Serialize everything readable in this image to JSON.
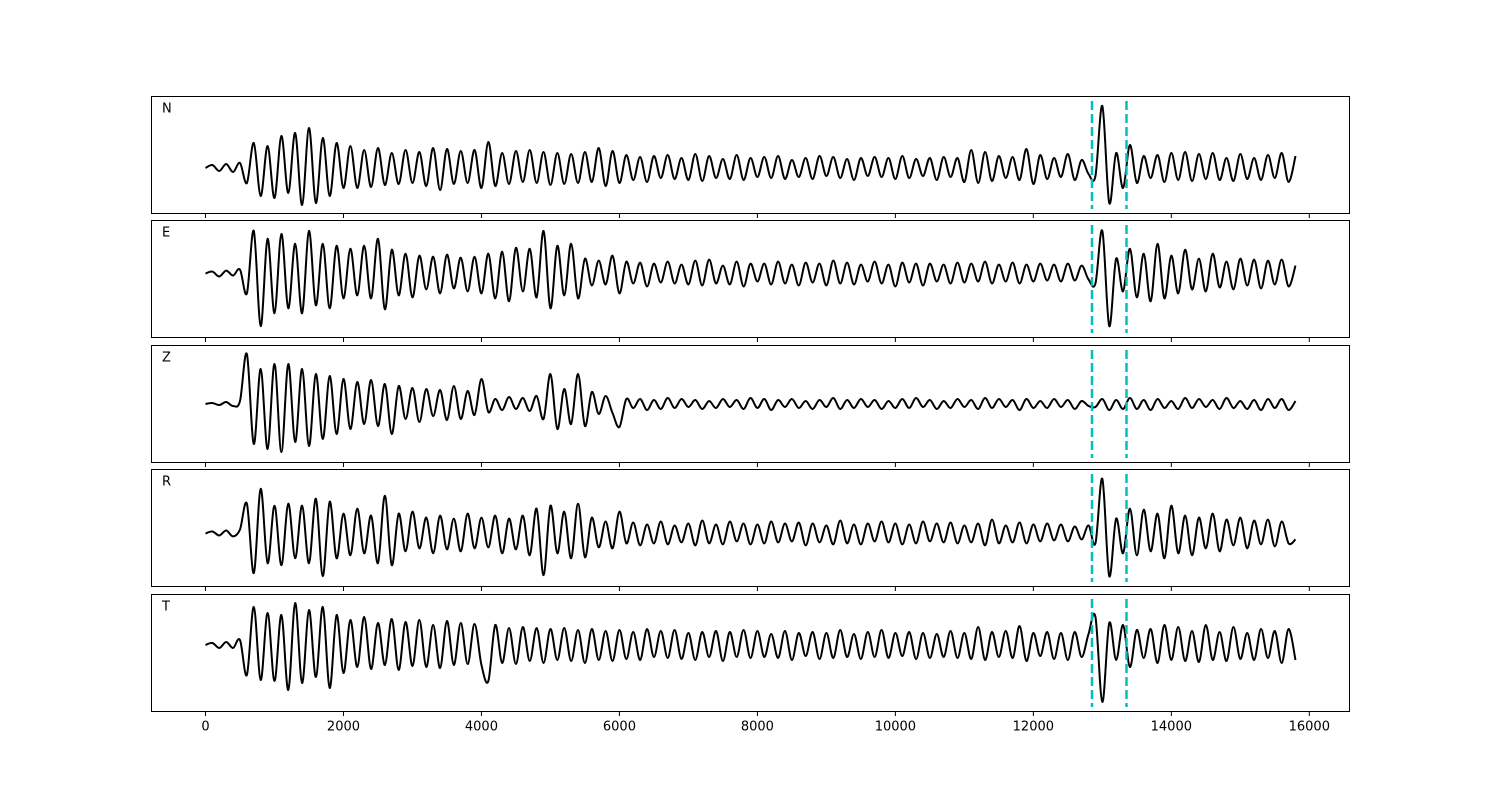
{
  "chart_data": {
    "type": "line",
    "x": [
      0,
      100,
      200,
      300,
      400,
      500,
      600,
      700,
      800,
      900,
      1000,
      1100,
      1200,
      1300,
      1400,
      1500,
      1600,
      1700,
      1800,
      1900,
      2000,
      2100,
      2200,
      2300,
      2400,
      2500,
      2600,
      2700,
      2800,
      2900,
      3000,
      3100,
      3200,
      3300,
      3400,
      3500,
      3600,
      3700,
      3800,
      3900,
      4000,
      4100,
      4200,
      4300,
      4400,
      4500,
      4600,
      4700,
      4800,
      4900,
      5000,
      5100,
      5200,
      5300,
      5400,
      5500,
      5600,
      5700,
      5800,
      5900,
      6000,
      6100,
      6200,
      6300,
      6400,
      6500,
      6600,
      6700,
      6800,
      6900,
      7000,
      7100,
      7200,
      7300,
      7400,
      7500,
      7600,
      7700,
      7800,
      7900,
      8000,
      8100,
      8200,
      8300,
      8400,
      8500,
      8600,
      8700,
      8800,
      8900,
      9000,
      9100,
      9200,
      9300,
      9400,
      9500,
      9600,
      9700,
      9800,
      9900,
      10000,
      10100,
      10200,
      10300,
      10400,
      10500,
      10600,
      10700,
      10800,
      10900,
      11000,
      11100,
      11200,
      11300,
      11400,
      11500,
      11600,
      11700,
      11800,
      11900,
      12000,
      12100,
      12200,
      12300,
      12400,
      12500,
      12600,
      12700,
      12800,
      12900,
      13000,
      13100,
      13200,
      13300,
      13400,
      13500,
      13600,
      13700,
      13800,
      13900,
      14000,
      14100,
      14200,
      14300,
      14400,
      14500,
      14600,
      14700,
      14800,
      14900,
      15000,
      15100,
      15200,
      15300,
      15400,
      15500,
      15600,
      15700,
      15800
    ],
    "xlim": [
      -790,
      16590
    ],
    "xticks": [
      0,
      2000,
      4000,
      6000,
      8000,
      10000,
      12000,
      14000,
      16000
    ],
    "series": [
      {
        "name": "N",
        "color": "#000000",
        "ylim": [
          -4.6,
          7.2
        ],
        "values": [
          0,
          0.3,
          -0.3,
          0.4,
          -0.4,
          0.5,
          -1.5,
          2.5,
          -2.8,
          2.2,
          -3,
          3.2,
          -2.5,
          3.5,
          -3.7,
          4,
          -3.5,
          3,
          -2.8,
          2.5,
          -2,
          2.2,
          -2,
          1.8,
          -1.9,
          2,
          -1.7,
          1.5,
          -1.6,
          1.8,
          -1.5,
          1.6,
          -1.8,
          2,
          -2.2,
          1.9,
          -1.6,
          1.7,
          -1.5,
          1.8,
          -2,
          2.6,
          -1.8,
          1.5,
          -1.6,
          1.7,
          -1.4,
          1.8,
          -1.5,
          1.6,
          -1.7,
          1.5,
          -1.6,
          1.4,
          -1.5,
          1.6,
          -1.4,
          2,
          -1.8,
          1.7,
          -1.5,
          1.3,
          -1.2,
          1.1,
          -1.4,
          1.2,
          -1,
          1.3,
          -1.1,
          1,
          -1.2,
          1.4,
          -1.3,
          1.2,
          -1,
          0.9,
          -1.1,
          1.3,
          -1.2,
          1,
          -0.9,
          1.1,
          -1,
          1.2,
          -1.1,
          0.8,
          -0.9,
          1,
          -1.1,
          1.2,
          -0.8,
          1.1,
          -1,
          0.9,
          -1.2,
          1,
          -0.8,
          1.1,
          -0.9,
          1,
          -1.1,
          1.2,
          -1,
          0.9,
          -0.8,
          1,
          -1.2,
          1.1,
          -0.9,
          1,
          -1.4,
          1.8,
          -1.5,
          1.6,
          -1.3,
          1.2,
          -1,
          1.1,
          -1.2,
          1.9,
          -1.6,
          1.3,
          -1.1,
          1,
          -0.9,
          1.4,
          -1.2,
          0.8,
          -0.6,
          -0.8,
          6.2,
          -3.5,
          1.5,
          -2,
          2.3,
          -1.5,
          1.2,
          -1,
          1.3,
          -1.4,
          1.5,
          -1.2,
          1.6,
          -1.3,
          1.4,
          -1.1,
          1.5,
          -1.2,
          1,
          -1.3,
          1.4,
          -1.1,
          1,
          -1.2,
          1.3,
          -1,
          1.5,
          -1.4,
          1.2
        ]
      },
      {
        "name": "E",
        "color": "#000000",
        "ylim": [
          -6.5,
          5.4
        ],
        "values": [
          0,
          0.2,
          -0.3,
          0.3,
          -0.2,
          0.4,
          -2,
          4.3,
          -5.3,
          3.5,
          -4,
          4,
          -3.5,
          3,
          -4,
          4.3,
          -3.2,
          3,
          -3.5,
          2.8,
          -2.5,
          2.5,
          -2.2,
          2.8,
          -2.5,
          3.5,
          -3.6,
          2.4,
          -2.2,
          2,
          -2.4,
          1.8,
          -1.6,
          1.7,
          -2,
          1.9,
          -1.5,
          1.6,
          -1.8,
          1.7,
          -2,
          2,
          -2.5,
          2.2,
          -2.8,
          2.6,
          -1.8,
          2.5,
          -2.4,
          4.3,
          -3.5,
          2.8,
          -2.2,
          3,
          -2.5,
          1.5,
          -1.2,
          1.3,
          -1.1,
          1.8,
          -2,
          1.2,
          -1,
          1.1,
          -1.3,
          1,
          -0.9,
          1.2,
          -1,
          0.9,
          -1.1,
          1.3,
          -1.2,
          1.4,
          -1,
          0.8,
          -1.1,
          1.2,
          -1.3,
          1,
          -0.8,
          1,
          -1.1,
          1.2,
          -1,
          0.9,
          -1.2,
          1.1,
          -0.9,
          1,
          -1.2,
          1.3,
          -1,
          1.1,
          -1.1,
          0.9,
          -0.8,
          1.2,
          -1,
          0.9,
          -1.3,
          1.1,
          -0.9,
          1,
          -1.2,
          1,
          -0.8,
          0.9,
          -1,
          1.1,
          -0.9,
          1,
          -0.8,
          1.2,
          -1,
          0.9,
          -0.8,
          1.1,
          -1,
          0.9,
          -0.8,
          1,
          -0.7,
          0.9,
          -0.8,
          1,
          -0.7,
          0.8,
          -0.6,
          -1,
          4.3,
          -5.3,
          1.5,
          -1.8,
          2.5,
          -2.4,
          2,
          -2.8,
          3,
          -2.5,
          1.8,
          -2,
          2.4,
          -1.6,
          1.5,
          -1.8,
          2,
          -1.4,
          1.2,
          -1.6,
          1.5,
          -1.2,
          1.4,
          -1.5,
          1.3,
          -1.1,
          1.4,
          -1.3,
          0.8
        ]
      },
      {
        "name": "Z",
        "color": "#000000",
        "ylim": [
          -5.9,
          5.9
        ],
        "values": [
          0,
          0.1,
          -0.1,
          0.2,
          -0.2,
          0.3,
          5,
          -4,
          3.5,
          -4.5,
          4,
          -4.8,
          4,
          -3.8,
          3.5,
          -4.2,
          3,
          -3.5,
          2.8,
          -3,
          2.5,
          -2.5,
          2.2,
          -2,
          2.4,
          -2.2,
          2,
          -3,
          1.8,
          -1.5,
          1.6,
          -1.8,
          1.5,
          -1.2,
          1.4,
          -1.6,
          1.8,
          -1.5,
          1.3,
          -1.1,
          2.5,
          -0.8,
          0.5,
          -0.6,
          0.7,
          -0.5,
          0.6,
          -0.7,
          0.8,
          -1.5,
          3,
          -2.5,
          1.5,
          -2,
          3,
          -2.2,
          1.2,
          -1,
          0.8,
          -0.9,
          -2.3,
          0.5,
          -0.4,
          0.5,
          -0.6,
          0.4,
          -0.5,
          0.6,
          -0.4,
          0.5,
          -0.3,
          0.4,
          -0.5,
          0.3,
          -0.4,
          0.5,
          -0.3,
          0.4,
          -0.5,
          0.6,
          -0.4,
          0.5,
          -0.6,
          0.4,
          -0.3,
          0.5,
          -0.4,
          0.3,
          -0.5,
          0.4,
          -0.3,
          0.6,
          -0.5,
          0.4,
          -0.4,
          0.5,
          -0.3,
          0.4,
          -0.5,
          0.3,
          -0.4,
          0.5,
          -0.4,
          0.6,
          -0.3,
          0.4,
          -0.5,
          0.3,
          -0.4,
          0.5,
          -0.3,
          0.4,
          -0.5,
          0.6,
          -0.4,
          0.5,
          -0.3,
          0.4,
          -0.6,
          0.5,
          -0.4,
          0.3,
          -0.4,
          0.5,
          -0.3,
          0.4,
          -0.5,
          0.3,
          -0.2,
          -0.3,
          0.5,
          -0.6,
          0.4,
          -0.5,
          0.6,
          -0.5,
          0.4,
          -0.6,
          0.5,
          -0.4,
          0.3,
          -0.5,
          0.6,
          -0.4,
          0.5,
          -0.3,
          0.4,
          -0.5,
          0.6,
          -0.4,
          0.3,
          -0.5,
          0.4,
          -0.6,
          0.5,
          -0.4,
          0.5,
          -0.6,
          0.3
        ]
      },
      {
        "name": "R",
        "color": "#000000",
        "ylim": [
          -5.4,
          6.5
        ],
        "values": [
          0,
          0.2,
          -0.2,
          0.3,
          -0.3,
          0.4,
          3,
          -4,
          4.5,
          -3,
          2.8,
          -3.2,
          3,
          -2.5,
          2.8,
          -3,
          3.5,
          -4.3,
          3.2,
          -2.5,
          2,
          -2.2,
          2.5,
          -2,
          1.8,
          -3,
          3.8,
          -3.2,
          2,
          -1.8,
          2.2,
          -1.5,
          1.6,
          -2,
          1.8,
          -1.6,
          1.5,
          -1.8,
          2,
          -1.5,
          1.6,
          -1.4,
          1.8,
          -2,
          1.5,
          -1.6,
          1.8,
          -2.2,
          2.5,
          -4.2,
          2.8,
          -2,
          2.2,
          -2.5,
          3,
          -2.4,
          1.6,
          -1.4,
          1.2,
          -1.5,
          2.2,
          -1,
          1.1,
          -1.2,
          0.9,
          -1,
          1.2,
          -1.1,
          0.8,
          -0.9,
          1,
          -1.2,
          1.3,
          -1,
          0.9,
          -1.1,
          1.2,
          -0.8,
          1,
          -1.1,
          0.9,
          -1,
          1.2,
          -0.9,
          1,
          -0.8,
          1.1,
          -1.2,
          1,
          -0.9,
          0.8,
          -1.1,
          1.3,
          -1,
          0.9,
          -1.1,
          1,
          -0.8,
          1.2,
          -0.9,
          1,
          -1.1,
          0.9,
          -1,
          1.2,
          -0.8,
          1,
          -0.9,
          1.1,
          -1,
          0.8,
          -0.9,
          1,
          -1.2,
          1.4,
          -1,
          0.8,
          -0.9,
          1.1,
          -1,
          0.9,
          -0.8,
          1,
          -0.7,
          0.9,
          -0.8,
          0.7,
          -0.6,
          0.8,
          -1,
          5.5,
          -4.3,
          1.5,
          -2,
          2.5,
          -2.2,
          2.4,
          -1.8,
          2,
          -2.5,
          2.8,
          -2,
          1.8,
          -2.2,
          1.6,
          -1.5,
          2,
          -1.8,
          1.4,
          -1.2,
          1.6,
          -1.5,
          1.3,
          -1.1,
          1.4,
          -1.3,
          1.2,
          -1,
          -0.6
        ]
      },
      {
        "name": "T",
        "color": "#000000",
        "ylim": [
          -6.7,
          5.1
        ],
        "values": [
          0,
          0.2,
          -0.3,
          0.3,
          -0.3,
          0.5,
          -3,
          3.8,
          -3.5,
          3.2,
          -3.6,
          3,
          -4.5,
          4.2,
          -3.8,
          3.5,
          -3.2,
          3.8,
          -4.3,
          3,
          -2.8,
          2.5,
          -2.2,
          2.8,
          -2.4,
          2.2,
          -2,
          2.6,
          -2.5,
          2.3,
          -2.1,
          2.5,
          -2.2,
          2,
          -2.3,
          2.4,
          -2,
          2.2,
          -1.9,
          2.1,
          -2,
          -3.6,
          2,
          -1.8,
          1.7,
          -1.9,
          1.8,
          -1.6,
          1.7,
          -1.8,
          1.6,
          -1.5,
          1.7,
          -1.6,
          1.5,
          -1.8,
          1.6,
          -1.5,
          1.4,
          -1.6,
          1.5,
          -1.4,
          1.3,
          -1.5,
          1.6,
          -1.2,
          1.4,
          -1.3,
          1.5,
          -1.4,
          1.2,
          -1.5,
          1.3,
          -1.2,
          1.4,
          -1.6,
          1.3,
          -1.2,
          1.5,
          -1.3,
          1.4,
          -1.2,
          1.1,
          -1.3,
          1.4,
          -1.5,
          1.2,
          -1.1,
          1.3,
          -1.4,
          1.2,
          -1.3,
          1.5,
          -1.2,
          1.1,
          -1.4,
          1.3,
          -1.2,
          1.5,
          -1.3,
          1.2,
          -1.1,
          1.3,
          -1.4,
          1.2,
          -1.3,
          1.1,
          -1.2,
          1.4,
          -1.3,
          1.2,
          -1.4,
          1.8,
          -1.5,
          1.3,
          -1.2,
          1.4,
          -1.3,
          1.9,
          -1.6,
          1.2,
          -1.1,
          1.3,
          -1.4,
          1.2,
          -1.5,
          1.3,
          -1.2,
          1.1,
          2.8,
          -5.7,
          2.2,
          -1.5,
          2,
          -2.2,
          1.5,
          -1.3,
          1.6,
          -1.8,
          2,
          -1.5,
          1.8,
          -1.6,
          1.4,
          -1.7,
          2,
          -1.5,
          1.3,
          -1.6,
          1.8,
          -1.4,
          1.2,
          -1.5,
          1.6,
          -1.3,
          1.4,
          -1.8,
          1.6,
          -1.5
        ]
      }
    ],
    "vlines": [
      12850,
      13350
    ],
    "vline_color": "#00bfbf",
    "vline_style": "dashed"
  }
}
